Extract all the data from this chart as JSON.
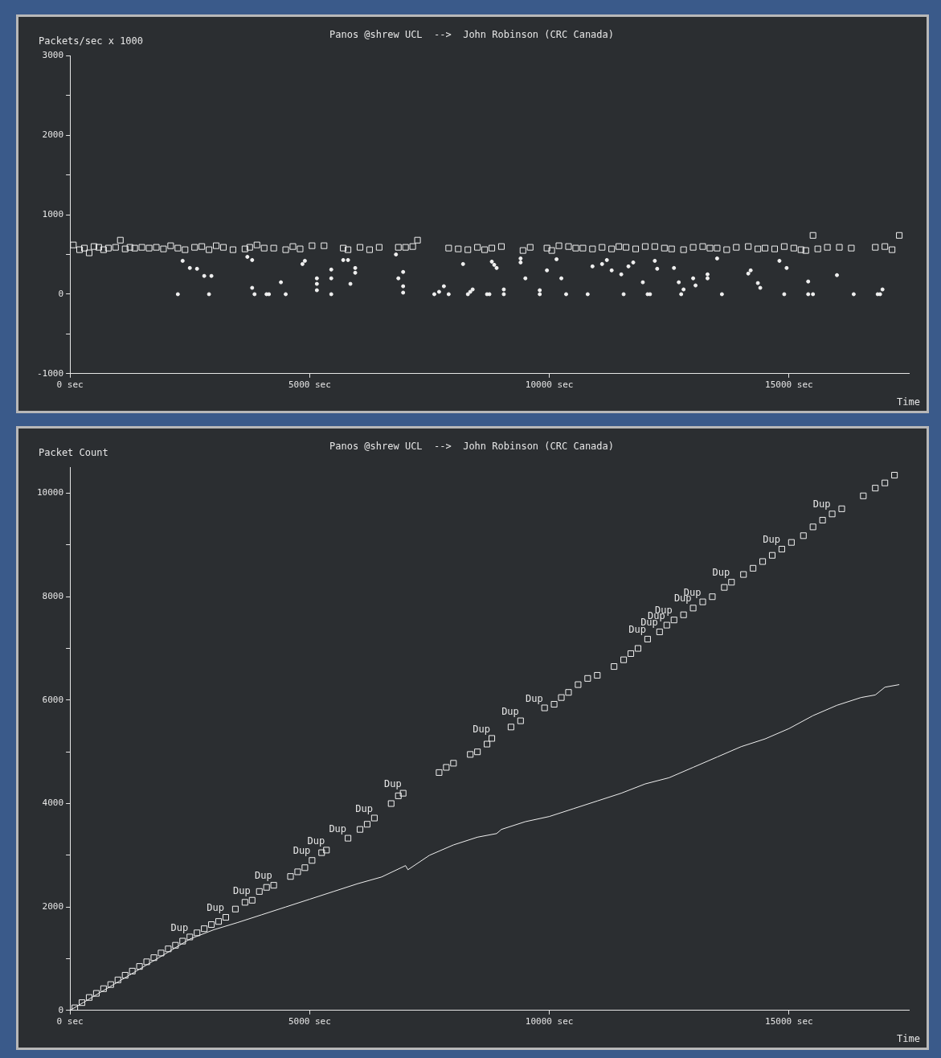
{
  "chart_data": [
    {
      "type": "scatter",
      "title": "Panos @shrew UCL  -->  John Robinson (CRC Canada)",
      "xlabel": "Time",
      "ylabel": "Packets/sec x 1000",
      "grid": false,
      "legend": false,
      "xlim": [
        0,
        17500
      ],
      "xticks": [
        {
          "value": 0,
          "label": "0 sec"
        },
        {
          "value": 5000,
          "label": "5000 sec"
        },
        {
          "value": 10000,
          "label": "10000 sec"
        },
        {
          "value": 15000,
          "label": "15000 sec"
        }
      ],
      "ylim": [
        -1000,
        3000
      ],
      "yticks": [
        -1000,
        {
          "value": -500,
          "label": null
        },
        0,
        {
          "value": 500,
          "label": null
        },
        1000,
        {
          "value": 1500,
          "label": null
        },
        2000,
        {
          "value": 2500,
          "label": null
        },
        3000
      ],
      "series": [
        {
          "color": "#f0f0f0",
          "marker": "square",
          "x": [
            70,
            200,
            300,
            400,
            500,
            600,
            700,
            800,
            950,
            1050,
            1150,
            1250,
            1350,
            1500,
            1650,
            1800,
            1950,
            2100,
            2250,
            2400,
            2600,
            2750,
            2900,
            3050,
            3200,
            3400,
            3650,
            3750,
            3900,
            4050,
            4250,
            4500,
            4650,
            4800,
            5050,
            5300,
            5700,
            5800,
            6050,
            6250,
            6450,
            6850,
            7000,
            7150,
            7250,
            7900,
            8100,
            8300,
            8500,
            8650,
            8800,
            9000,
            9450,
            9600,
            9950,
            10050,
            10200,
            10400,
            10550,
            10700,
            10900,
            11100,
            11300,
            11450,
            11600,
            11800,
            12000,
            12200,
            12400,
            12550,
            12800,
            13000,
            13200,
            13350,
            13500,
            13700,
            13900,
            14150,
            14350,
            14500,
            14700,
            14900,
            15100,
            15250,
            15350,
            15500,
            15600,
            15800,
            16050,
            16300,
            16800,
            17000,
            17150,
            17300
          ],
          "values": [
            620,
            560,
            580,
            520,
            600,
            590,
            560,
            580,
            590,
            680,
            570,
            590,
            580,
            590,
            580,
            590,
            570,
            610,
            580,
            560,
            590,
            600,
            560,
            610,
            590,
            560,
            570,
            590,
            620,
            580,
            580,
            560,
            600,
            570,
            610,
            610,
            580,
            560,
            590,
            560,
            590,
            590,
            590,
            600,
            680,
            580,
            570,
            560,
            590,
            560,
            580,
            600,
            550,
            590,
            580,
            550,
            610,
            600,
            580,
            580,
            570,
            590,
            570,
            600,
            590,
            570,
            600,
            600,
            580,
            570,
            560,
            590,
            600,
            580,
            580,
            560,
            590,
            600,
            570,
            580,
            570,
            600,
            580,
            560,
            550,
            740,
            570,
            590,
            590,
            580,
            590,
            600,
            560,
            740
          ]
        },
        {
          "color": "#f0f0f0",
          "marker": "circle",
          "x": [
            2250,
            2350,
            2500,
            2650,
            2800,
            2900,
            2950,
            3700,
            3800,
            3800,
            3850,
            4100,
            4150,
            4400,
            4500,
            4850,
            4900,
            5150,
            5150,
            5150,
            5450,
            5450,
            5450,
            5700,
            5800,
            5850,
            5950,
            5950,
            6800,
            6850,
            6950,
            6950,
            6950,
            7600,
            7700,
            7800,
            7900,
            8200,
            8300,
            8350,
            8400,
            8700,
            8750,
            8800,
            8850,
            8900,
            9050,
            9050,
            9400,
            9400,
            9500,
            9800,
            9800,
            9950,
            10150,
            10250,
            10350,
            10800,
            10900,
            11100,
            11200,
            11300,
            11500,
            11550,
            11650,
            11750,
            11950,
            12050,
            12100,
            12200,
            12250,
            12600,
            12700,
            12750,
            12800,
            13000,
            13050,
            13300,
            13300,
            13500,
            13600,
            14150,
            14200,
            14350,
            14400,
            14800,
            14900,
            14950,
            15400,
            15400,
            15500,
            16000,
            16350,
            16850,
            16900,
            16950
          ],
          "values": [
            0,
            420,
            330,
            320,
            230,
            0,
            230,
            470,
            430,
            80,
            0,
            0,
            0,
            150,
            0,
            380,
            420,
            200,
            130,
            50,
            0,
            310,
            200,
            430,
            430,
            130,
            330,
            270,
            500,
            200,
            280,
            100,
            20,
            0,
            30,
            100,
            0,
            380,
            0,
            30,
            60,
            0,
            0,
            410,
            370,
            330,
            0,
            60,
            400,
            450,
            200,
            0,
            50,
            300,
            440,
            200,
            0,
            0,
            350,
            380,
            430,
            300,
            250,
            0,
            350,
            400,
            150,
            0,
            0,
            420,
            320,
            330,
            150,
            0,
            60,
            200,
            110,
            200,
            250,
            450,
            0,
            260,
            300,
            140,
            80,
            420,
            0,
            330,
            160,
            0,
            0,
            240,
            0,
            0,
            0,
            60
          ]
        }
      ]
    },
    {
      "type": "scatter",
      "title": "Panos @shrew UCL  -->  John Robinson (CRC Canada)",
      "xlabel": "Time",
      "ylabel": "Packet Count",
      "grid": false,
      "legend": false,
      "xlim": [
        0,
        17500
      ],
      "xticks": [
        {
          "value": 0,
          "label": "0 sec"
        },
        {
          "value": 5000,
          "label": "5000 sec"
        },
        {
          "value": 10000,
          "label": "10000 sec"
        },
        {
          "value": 15000,
          "label": "15000 sec"
        }
      ],
      "ylim": [
        0,
        10500
      ],
      "yticks": [
        0,
        {
          "value": 1000,
          "label": null
        },
        2000,
        {
          "value": 3000,
          "label": null
        },
        4000,
        {
          "value": 5000,
          "label": null
        },
        6000,
        {
          "value": 7000,
          "label": null
        },
        8000,
        {
          "value": 9000,
          "label": null
        },
        10000
      ],
      "series": [
        {
          "color": "#f0f0f0",
          "marker": "square",
          "x": [
            100,
            250,
            400,
            550,
            700,
            850,
            1000,
            1150,
            1300,
            1450,
            1600,
            1750,
            1900,
            2050,
            2200,
            2350,
            2500,
            2650,
            2800,
            2950,
            3100,
            3250,
            3450,
            3650,
            3800,
            3950,
            4100,
            4250,
            4600,
            4750,
            4900,
            5050,
            5250,
            5350,
            5800,
            6050,
            6200,
            6350,
            6700,
            6850,
            6950,
            7700,
            7850,
            8000,
            8350,
            8500,
            8700,
            8800,
            9200,
            9400,
            9900,
            10100,
            10250,
            10400,
            10600,
            10800,
            11000,
            11350,
            11550,
            11700,
            11850,
            12050,
            12300,
            12450,
            12600,
            12800,
            13000,
            13200,
            13400,
            13650,
            13800,
            14050,
            14250,
            14450,
            14650,
            14850,
            15050,
            15300,
            15500,
            15700,
            15900,
            16100,
            16550,
            16800,
            17000,
            17200
          ],
          "values": [
            50,
            150,
            250,
            330,
            420,
            500,
            590,
            680,
            760,
            850,
            940,
            1020,
            1110,
            1190,
            1260,
            1340,
            1420,
            1500,
            1580,
            1660,
            1720,
            1800,
            1960,
            2090,
            2130,
            2300,
            2380,
            2420,
            2590,
            2680,
            2760,
            2900,
            3050,
            3100,
            3330,
            3500,
            3600,
            3720,
            4000,
            4150,
            4200,
            4600,
            4700,
            4780,
            4950,
            5000,
            5150,
            5260,
            5480,
            5600,
            5850,
            5920,
            6050,
            6150,
            6300,
            6420,
            6480,
            6650,
            6780,
            6900,
            7000,
            7180,
            7320,
            7450,
            7550,
            7650,
            7780,
            7900,
            8000,
            8180,
            8280,
            8430,
            8550,
            8680,
            8800,
            8920,
            9050,
            9180,
            9350,
            9480,
            9600,
            9700,
            9950,
            10100,
            10200,
            10350
          ]
        },
        {
          "type": "line",
          "color": "#f0f0f0",
          "marker": "none",
          "x": [
            0,
            1000,
            2000,
            2500,
            3000,
            3500,
            4000,
            4500,
            5000,
            5500,
            6000,
            6500,
            7000,
            7050,
            7500,
            8000,
            8500,
            8900,
            9000,
            9500,
            10000,
            10500,
            11000,
            11500,
            12000,
            12500,
            13000,
            13500,
            14000,
            14500,
            15000,
            15500,
            16000,
            16500,
            16800,
            17000,
            17300
          ],
          "values": [
            0,
            550,
            1100,
            1380,
            1560,
            1700,
            1850,
            2000,
            2150,
            2300,
            2450,
            2580,
            2800,
            2720,
            3000,
            3200,
            3350,
            3420,
            3500,
            3650,
            3750,
            3900,
            4050,
            4200,
            4380,
            4500,
            4700,
            4900,
            5100,
            5250,
            5450,
            5700,
            5900,
            6050,
            6100,
            6250,
            6300
          ]
        }
      ],
      "annotations": [
        {
          "text": "Dup",
          "x": 2500,
          "y": 1420
        },
        {
          "text": "Dup",
          "x": 3250,
          "y": 1800
        },
        {
          "text": "Dup",
          "x": 3800,
          "y": 2130
        },
        {
          "text": "Dup",
          "x": 4250,
          "y": 2420
        },
        {
          "text": "Dup",
          "x": 5050,
          "y": 2900
        },
        {
          "text": "Dup",
          "x": 5350,
          "y": 3100
        },
        {
          "text": "Dup",
          "x": 5800,
          "y": 3330
        },
        {
          "text": "Dup",
          "x": 6350,
          "y": 3720
        },
        {
          "text": "Dup",
          "x": 6950,
          "y": 4200
        },
        {
          "text": "Dup",
          "x": 8800,
          "y": 5260
        },
        {
          "text": "Dup",
          "x": 9400,
          "y": 5600
        },
        {
          "text": "Dup",
          "x": 9900,
          "y": 5850
        },
        {
          "text": "Dup",
          "x": 12050,
          "y": 7180
        },
        {
          "text": "Dup",
          "x": 12300,
          "y": 7320
        },
        {
          "text": "Dup",
          "x": 12450,
          "y": 7450
        },
        {
          "text": "Dup",
          "x": 12600,
          "y": 7550
        },
        {
          "text": "Dup",
          "x": 13000,
          "y": 7780
        },
        {
          "text": "Dup",
          "x": 13200,
          "y": 7900
        },
        {
          "text": "Dup",
          "x": 13800,
          "y": 8280
        },
        {
          "text": "Dup",
          "x": 14850,
          "y": 8920
        },
        {
          "text": "Dup",
          "x": 15900,
          "y": 9600
        }
      ]
    }
  ]
}
